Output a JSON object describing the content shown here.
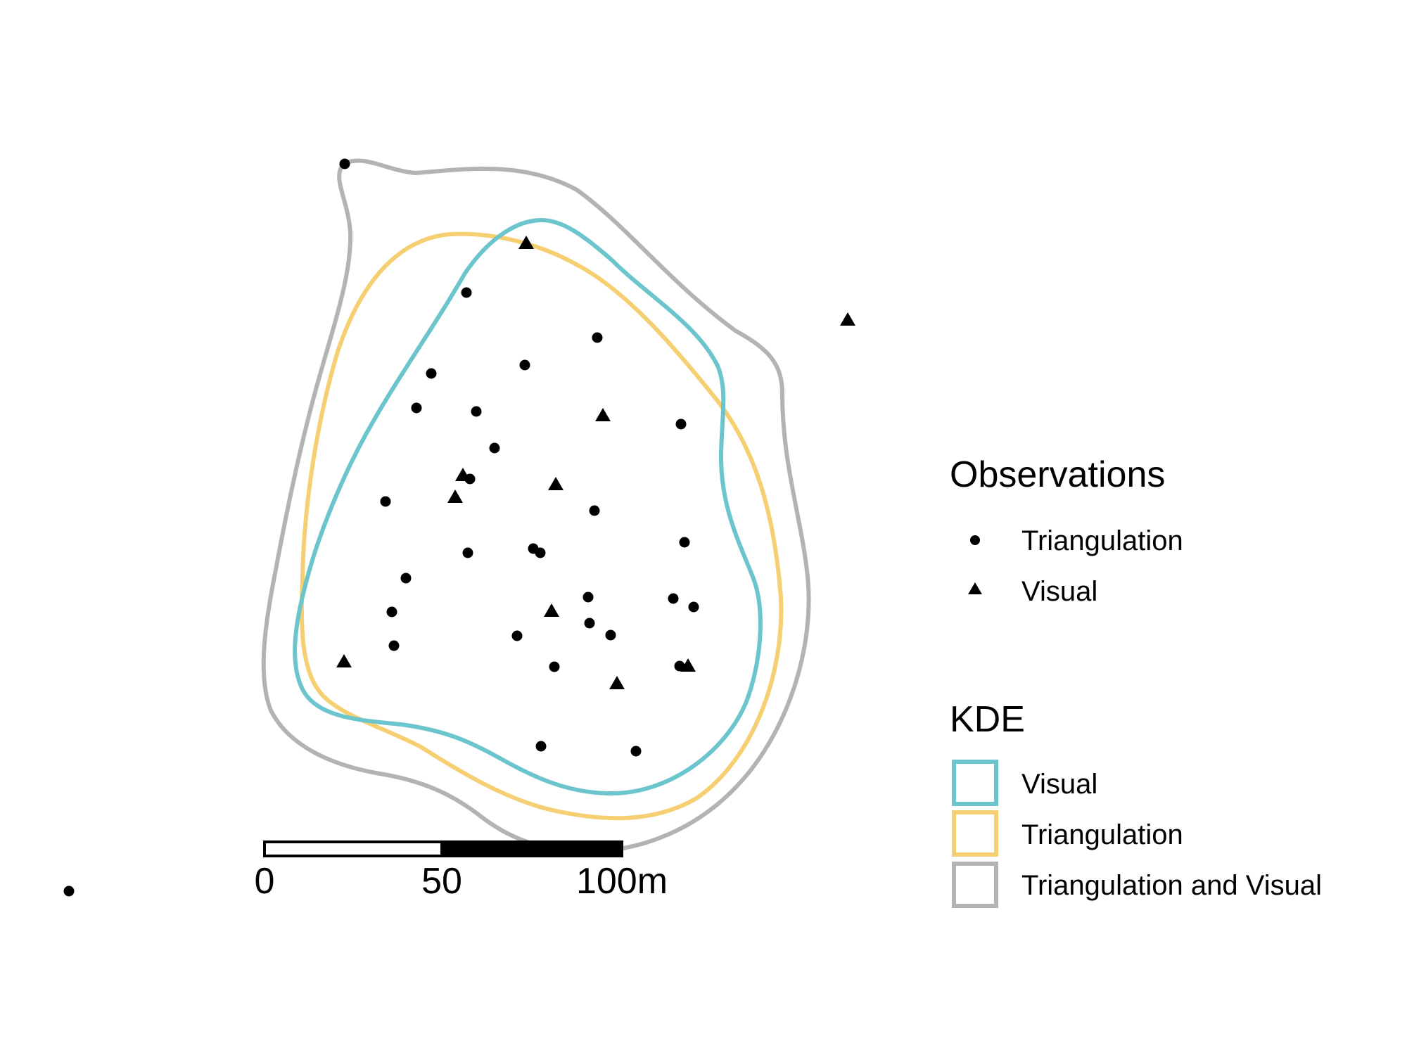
{
  "colors": {
    "kde_visual": "#6CC5CC",
    "kde_triangulation": "#F5CF72",
    "kde_combined": "#B3B3B3",
    "points": "#000000"
  },
  "legend": {
    "observations": {
      "title": "Observations",
      "items": [
        {
          "label": "Triangulation",
          "symbol": "circle"
        },
        {
          "label": "Visual",
          "symbol": "triangle"
        }
      ]
    },
    "kde": {
      "title": "KDE",
      "items": [
        {
          "label": "Visual",
          "color": "#6CC5CC"
        },
        {
          "label": "Triangulation",
          "color": "#F5CF72"
        },
        {
          "label": "Triangulation and Visual",
          "color": "#B3B3B3"
        }
      ]
    }
  },
  "scale_bar": {
    "labels": [
      "0",
      "50",
      "100m"
    ]
  }
}
